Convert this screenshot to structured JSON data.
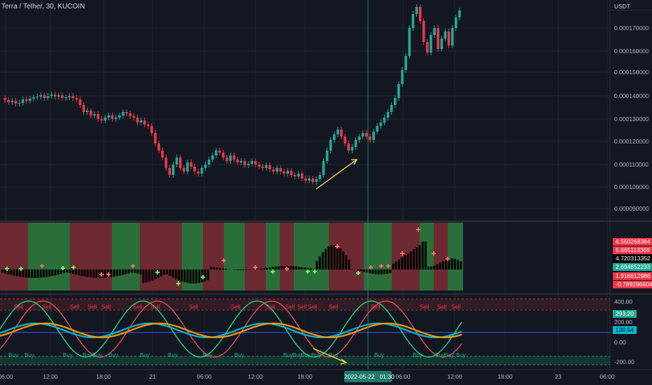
{
  "header": {
    "ticker": "Terra / Tether, 30, KUCOIN",
    "currency": "USDT"
  },
  "price_axis": {
    "labels": [
      "0.000170000",
      "0.000160000",
      "0.000150000",
      "0.000140000",
      "0.000130000",
      "0.000120000",
      "0.000110000",
      "0.000100000",
      "0.000090000"
    ]
  },
  "time_axis": {
    "labels": [
      "06:00",
      "12:00",
      "18:00",
      "21",
      "06:00",
      "12:00",
      "18:00",
      "06:00",
      "12:00",
      "18:00",
      "23",
      "06:00"
    ],
    "crosshair_date": "2022-05-22",
    "crosshair_time": "01:30"
  },
  "indicator1": {
    "values": [
      "6.550268384",
      "5.665113369",
      "4.720313352",
      "2.694852233",
      "1.916612986",
      "-0.789296604"
    ],
    "colors": [
      "#f23645",
      "#f23645",
      "#000000",
      "#22ab94",
      "#f23645",
      "#f23645"
    ]
  },
  "indicator2": {
    "axis_labels": [
      "400.00",
      "200.00",
      "0.00",
      "-200.00"
    ],
    "value_green": "293.20",
    "value_blue": "130.54",
    "sell_label": "Sell",
    "buy_label": "Buy",
    "sell_positions": [
      20,
      60,
      100,
      125,
      145,
      190,
      215,
      270,
      330,
      380,
      408,
      425,
      440,
      470,
      530,
      600,
      625,
      645
    ],
    "buy_positions": [
      12,
      35,
      90,
      118,
      132,
      155,
      200,
      240,
      290,
      335,
      405,
      418,
      430,
      445,
      470,
      535,
      590,
      622,
      635,
      652
    ]
  },
  "colors": {
    "bg": "#131722",
    "up": "#22ab94",
    "down": "#f23645",
    "grid": "#1f2430",
    "cyan": "#00bcd4",
    "orange": "#ff9800",
    "osc_green": "#26e08a",
    "osc_red": "#f05454",
    "yellow": "#f7e845"
  }
}
